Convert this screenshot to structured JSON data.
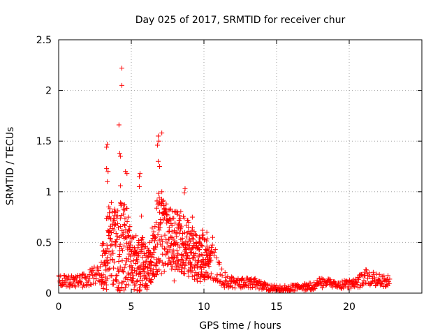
{
  "chart_data": {
    "type": "scatter",
    "title": "Day 025 of 2017, SRMTID for receiver chur",
    "xlabel": "GPS time / hours",
    "ylabel": "SRMTID / TECUs",
    "xlim": [
      0,
      25
    ],
    "ylim": [
      0,
      2.5
    ],
    "x_ticks": [
      0,
      5,
      10,
      15,
      20
    ],
    "x_tick_labels": [
      "0",
      "5",
      "10",
      "15",
      "20"
    ],
    "y_ticks": [
      0,
      0.5,
      1,
      1.5,
      2,
      2.5
    ],
    "y_tick_labels": [
      "0",
      "0.5",
      "1",
      "1.5",
      "2",
      "2.5"
    ],
    "grid": true,
    "marker": "plus",
    "color": "#ff0000",
    "series_envelope": [
      {
        "x": 0.0,
        "base": 0.13,
        "spread": 0.06
      },
      {
        "x": 1.0,
        "base": 0.11,
        "spread": 0.06
      },
      {
        "x": 2.0,
        "base": 0.13,
        "spread": 0.08
      },
      {
        "x": 2.8,
        "base": 0.2,
        "spread": 0.12
      },
      {
        "x": 3.2,
        "base": 0.35,
        "spread": 0.35
      },
      {
        "x": 3.6,
        "base": 0.5,
        "spread": 0.4
      },
      {
        "x": 4.2,
        "base": 0.45,
        "spread": 0.45
      },
      {
        "x": 4.6,
        "base": 0.5,
        "spread": 0.45
      },
      {
        "x": 5.0,
        "base": 0.3,
        "spread": 0.25
      },
      {
        "x": 5.6,
        "base": 0.3,
        "spread": 0.3
      },
      {
        "x": 6.2,
        "base": 0.25,
        "spread": 0.2
      },
      {
        "x": 6.9,
        "base": 0.6,
        "spread": 0.45
      },
      {
        "x": 7.5,
        "base": 0.55,
        "spread": 0.3
      },
      {
        "x": 8.5,
        "base": 0.5,
        "spread": 0.3
      },
      {
        "x": 9.5,
        "base": 0.35,
        "spread": 0.25
      },
      {
        "x": 10.5,
        "base": 0.35,
        "spread": 0.2
      },
      {
        "x": 11.2,
        "base": 0.15,
        "spread": 0.1
      },
      {
        "x": 12.0,
        "base": 0.1,
        "spread": 0.05
      },
      {
        "x": 13.5,
        "base": 0.1,
        "spread": 0.05
      },
      {
        "x": 14.5,
        "base": 0.05,
        "spread": 0.03
      },
      {
        "x": 16.0,
        "base": 0.05,
        "spread": 0.03
      },
      {
        "x": 17.5,
        "base": 0.07,
        "spread": 0.04
      },
      {
        "x": 18.0,
        "base": 0.11,
        "spread": 0.06
      },
      {
        "x": 19.0,
        "base": 0.08,
        "spread": 0.04
      },
      {
        "x": 20.5,
        "base": 0.09,
        "spread": 0.05
      },
      {
        "x": 21.0,
        "base": 0.16,
        "spread": 0.08
      },
      {
        "x": 22.0,
        "base": 0.13,
        "spread": 0.07
      },
      {
        "x": 22.8,
        "base": 0.12,
        "spread": 0.05
      }
    ],
    "points": [
      [
        4.35,
        2.22
      ],
      [
        4.35,
        2.05
      ],
      [
        4.15,
        1.66
      ],
      [
        7.1,
        1.58
      ],
      [
        6.85,
        1.55
      ],
      [
        6.9,
        1.5
      ],
      [
        6.8,
        1.46
      ],
      [
        3.35,
        1.47
      ],
      [
        3.3,
        1.44
      ],
      [
        4.2,
        1.38
      ],
      [
        4.25,
        1.35
      ],
      [
        3.3,
        1.23
      ],
      [
        3.4,
        1.2
      ],
      [
        4.6,
        1.2
      ],
      [
        4.7,
        1.18
      ],
      [
        5.6,
        1.18
      ],
      [
        5.55,
        1.15
      ],
      [
        3.35,
        1.1
      ],
      [
        4.25,
        1.06
      ],
      [
        5.55,
        1.05
      ],
      [
        6.85,
        1.3
      ],
      [
        6.95,
        1.25
      ],
      [
        7.1,
        1.0
      ],
      [
        8.7,
        1.03
      ],
      [
        8.65,
        0.99
      ],
      [
        3.45,
        0.85
      ],
      [
        3.7,
        0.8
      ],
      [
        4.55,
        0.82
      ],
      [
        4.8,
        0.75
      ],
      [
        5.7,
        0.76
      ],
      [
        7.4,
        0.88
      ],
      [
        7.6,
        0.82
      ],
      [
        8.2,
        0.8
      ],
      [
        9.2,
        0.75
      ],
      [
        9.9,
        0.62
      ],
      [
        10.2,
        0.6
      ],
      [
        10.6,
        0.55
      ],
      [
        4.35,
        0.05
      ],
      [
        4.5,
        0.03
      ],
      [
        7.95,
        0.12
      ]
    ]
  }
}
